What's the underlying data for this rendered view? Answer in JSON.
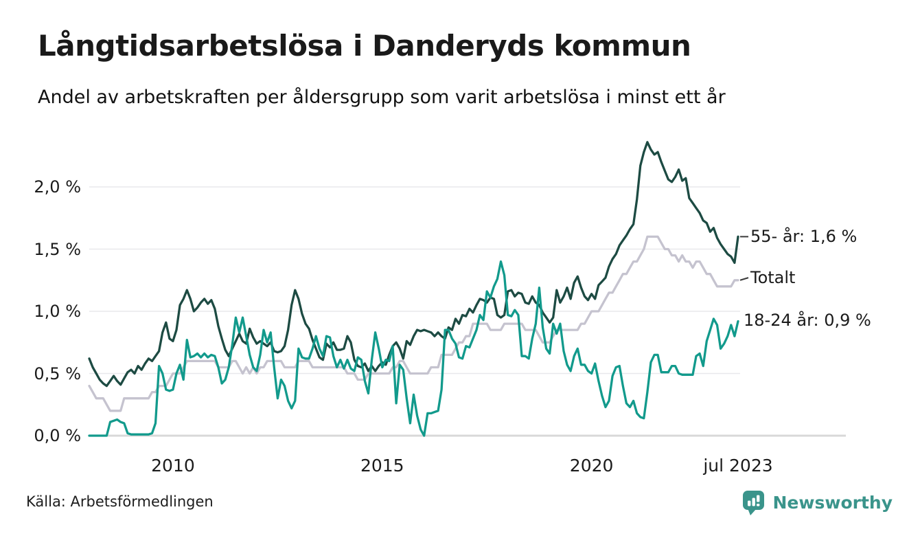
{
  "header": {
    "title": "Långtidsarbetslösa i Danderyds kommun",
    "subtitle": "Andel av arbetskraften per åldersgrupp som varit arbetslösa i minst ett år"
  },
  "footer": {
    "source": "Källa: Arbetsförmedlingen",
    "brand": "Newsworthy",
    "brand_icon": "bar-chart-speech-bubble-icon",
    "brand_color": "#3a948b"
  },
  "colors": {
    "series_55": "#1d4b43",
    "series_total": "#c5c3cf",
    "series_1824": "#129a8c",
    "gridline": "#e8e8ec",
    "axis_line": "#d8d8d8",
    "text": "#1a1a1a"
  },
  "chart_data": {
    "type": "line",
    "title": "Långtidsarbetslösa i Danderyds kommun",
    "subtitle": "Andel av arbetskraften per åldersgrupp som varit arbetslösa i minst ett år",
    "x_start": "2008-01",
    "x_end": "2023-07",
    "x_frequency": "monthly",
    "ylabel": "",
    "xlabel": "",
    "ylim": [
      0,
      2.45
    ],
    "grid": "horizontal",
    "legend_position": "right-end-labels",
    "yticks": [
      {
        "value": 0.0,
        "label": "0,0 %"
      },
      {
        "value": 0.5,
        "label": "0,5 %"
      },
      {
        "value": 1.0,
        "label": "1,0 %"
      },
      {
        "value": 1.5,
        "label": "1,5 %"
      },
      {
        "value": 2.0,
        "label": "2,0 %"
      }
    ],
    "xticks": [
      {
        "label": "2010",
        "month_index": 24
      },
      {
        "label": "2015",
        "month_index": 84
      },
      {
        "label": "2020",
        "month_index": 144
      },
      {
        "label": "jul 2023",
        "month_index": 186
      }
    ],
    "series": [
      {
        "name": "55- år",
        "color": "#1d4b43",
        "end_label": "55- år: 1,6 %",
        "end_value": 1.6,
        "label_anchor_pct": 1.6,
        "connector": true,
        "values": [
          0.62,
          0.55,
          0.5,
          0.45,
          0.42,
          0.4,
          0.44,
          0.48,
          0.44,
          0.41,
          0.46,
          0.51,
          0.53,
          0.5,
          0.56,
          0.53,
          0.58,
          0.62,
          0.6,
          0.64,
          0.68,
          0.83,
          0.91,
          0.78,
          0.76,
          0.85,
          1.05,
          1.1,
          1.17,
          1.1,
          1.0,
          1.03,
          1.07,
          1.1,
          1.06,
          1.09,
          1.02,
          0.88,
          0.78,
          0.69,
          0.64,
          0.7,
          0.76,
          0.82,
          0.76,
          0.74,
          0.86,
          0.79,
          0.74,
          0.76,
          0.74,
          0.72,
          0.75,
          0.68,
          0.67,
          0.68,
          0.72,
          0.85,
          1.05,
          1.17,
          1.1,
          0.98,
          0.9,
          0.86,
          0.77,
          0.7,
          0.63,
          0.61,
          0.74,
          0.71,
          0.75,
          0.69,
          0.69,
          0.7,
          0.8,
          0.75,
          0.61,
          0.56,
          0.55,
          0.58,
          0.52,
          0.56,
          0.52,
          0.56,
          0.59,
          0.57,
          0.65,
          0.72,
          0.75,
          0.7,
          0.62,
          0.76,
          0.73,
          0.8,
          0.85,
          0.84,
          0.85,
          0.84,
          0.83,
          0.8,
          0.83,
          0.8,
          0.78,
          0.87,
          0.85,
          0.94,
          0.9,
          0.97,
          0.96,
          1.02,
          0.99,
          1.05,
          1.1,
          1.09,
          1.07,
          1.11,
          1.1,
          0.97,
          0.95,
          0.97,
          1.16,
          1.17,
          1.12,
          1.15,
          1.14,
          1.07,
          1.06,
          1.12,
          1.07,
          1.05,
          0.99,
          0.95,
          0.91,
          0.95,
          1.17,
          1.07,
          1.12,
          1.19,
          1.1,
          1.23,
          1.28,
          1.19,
          1.12,
          1.09,
          1.14,
          1.1,
          1.21,
          1.24,
          1.27,
          1.36,
          1.42,
          1.46,
          1.53,
          1.57,
          1.61,
          1.66,
          1.7,
          1.9,
          2.17,
          2.28,
          2.36,
          2.3,
          2.26,
          2.28,
          2.2,
          2.13,
          2.06,
          2.04,
          2.08,
          2.14,
          2.05,
          2.07,
          1.91,
          1.87,
          1.83,
          1.79,
          1.73,
          1.71,
          1.64,
          1.67,
          1.59,
          1.54,
          1.5,
          1.46,
          1.44,
          1.39,
          1.6
        ]
      },
      {
        "name": "Totalt",
        "color": "#c5c3cf",
        "end_label": "Totalt",
        "end_value": 1.25,
        "label_anchor_pct": 1.27,
        "connector": true,
        "values": [
          0.4,
          0.35,
          0.3,
          0.3,
          0.3,
          0.25,
          0.2,
          0.2,
          0.2,
          0.2,
          0.3,
          0.3,
          0.3,
          0.3,
          0.3,
          0.3,
          0.3,
          0.3,
          0.35,
          0.35,
          0.4,
          0.4,
          0.4,
          0.45,
          0.5,
          0.5,
          0.5,
          0.55,
          0.6,
          0.6,
          0.6,
          0.6,
          0.6,
          0.6,
          0.6,
          0.6,
          0.6,
          0.55,
          0.55,
          0.55,
          0.55,
          0.6,
          0.6,
          0.55,
          0.5,
          0.55,
          0.5,
          0.55,
          0.5,
          0.55,
          0.55,
          0.6,
          0.6,
          0.6,
          0.6,
          0.6,
          0.55,
          0.55,
          0.55,
          0.55,
          0.6,
          0.6,
          0.6,
          0.6,
          0.55,
          0.55,
          0.55,
          0.55,
          0.55,
          0.55,
          0.55,
          0.55,
          0.55,
          0.55,
          0.5,
          0.5,
          0.5,
          0.45,
          0.45,
          0.45,
          0.5,
          0.5,
          0.5,
          0.5,
          0.5,
          0.5,
          0.5,
          0.55,
          0.55,
          0.6,
          0.6,
          0.55,
          0.5,
          0.5,
          0.5,
          0.5,
          0.5,
          0.5,
          0.55,
          0.55,
          0.55,
          0.65,
          0.65,
          0.65,
          0.65,
          0.7,
          0.75,
          0.75,
          0.8,
          0.8,
          0.9,
          0.9,
          0.9,
          0.9,
          0.9,
          0.85,
          0.85,
          0.85,
          0.85,
          0.9,
          0.9,
          0.9,
          0.9,
          0.9,
          0.9,
          0.85,
          0.85,
          0.85,
          0.85,
          0.8,
          0.75,
          0.75,
          0.75,
          0.8,
          0.85,
          0.85,
          0.85,
          0.85,
          0.85,
          0.85,
          0.85,
          0.9,
          0.9,
          0.95,
          1.0,
          1.0,
          1.0,
          1.05,
          1.1,
          1.15,
          1.15,
          1.2,
          1.25,
          1.3,
          1.3,
          1.35,
          1.4,
          1.4,
          1.45,
          1.5,
          1.6,
          1.6,
          1.6,
          1.6,
          1.55,
          1.5,
          1.5,
          1.45,
          1.45,
          1.4,
          1.45,
          1.4,
          1.4,
          1.35,
          1.4,
          1.4,
          1.35,
          1.3,
          1.3,
          1.25,
          1.2,
          1.2,
          1.2,
          1.2,
          1.2,
          1.25,
          1.25
        ]
      },
      {
        "name": "18-24 år",
        "color": "#129a8c",
        "end_label": "18-24 år: 0,9 %",
        "end_value": 0.9,
        "label_anchor_pct": 0.93,
        "connector": false,
        "values": [
          0.0,
          0.0,
          0.0,
          0.0,
          0.0,
          0.0,
          0.11,
          0.12,
          0.13,
          0.11,
          0.1,
          0.02,
          0.01,
          0.01,
          0.01,
          0.01,
          0.01,
          0.01,
          0.02,
          0.1,
          0.56,
          0.5,
          0.37,
          0.36,
          0.37,
          0.5,
          0.57,
          0.45,
          0.77,
          0.63,
          0.64,
          0.66,
          0.63,
          0.66,
          0.63,
          0.65,
          0.64,
          0.55,
          0.42,
          0.45,
          0.55,
          0.73,
          0.95,
          0.83,
          0.95,
          0.8,
          0.65,
          0.55,
          0.52,
          0.65,
          0.85,
          0.75,
          0.83,
          0.55,
          0.3,
          0.45,
          0.4,
          0.28,
          0.22,
          0.28,
          0.7,
          0.63,
          0.62,
          0.62,
          0.7,
          0.8,
          0.7,
          0.64,
          0.8,
          0.79,
          0.64,
          0.55,
          0.61,
          0.54,
          0.61,
          0.54,
          0.52,
          0.63,
          0.61,
          0.44,
          0.34,
          0.61,
          0.83,
          0.7,
          0.55,
          0.61,
          0.6,
          0.72,
          0.26,
          0.57,
          0.53,
          0.3,
          0.1,
          0.33,
          0.16,
          0.05,
          0.0,
          0.18,
          0.18,
          0.19,
          0.2,
          0.37,
          0.85,
          0.85,
          0.78,
          0.74,
          0.63,
          0.62,
          0.72,
          0.71,
          0.78,
          0.85,
          0.97,
          0.93,
          1.16,
          1.11,
          1.2,
          1.26,
          1.4,
          1.29,
          0.97,
          0.96,
          1.01,
          0.97,
          0.64,
          0.64,
          0.62,
          0.78,
          0.9,
          1.19,
          0.87,
          0.7,
          0.66,
          0.9,
          0.82,
          0.9,
          0.68,
          0.57,
          0.52,
          0.64,
          0.7,
          0.57,
          0.57,
          0.52,
          0.5,
          0.58,
          0.44,
          0.32,
          0.23,
          0.28,
          0.48,
          0.55,
          0.56,
          0.4,
          0.26,
          0.23,
          0.28,
          0.18,
          0.15,
          0.14,
          0.35,
          0.59,
          0.65,
          0.65,
          0.51,
          0.51,
          0.51,
          0.56,
          0.56,
          0.5,
          0.49,
          0.49,
          0.49,
          0.49,
          0.64,
          0.66,
          0.56,
          0.76,
          0.85,
          0.94,
          0.89,
          0.7,
          0.74,
          0.8,
          0.89,
          0.8,
          0.92
        ]
      }
    ]
  }
}
